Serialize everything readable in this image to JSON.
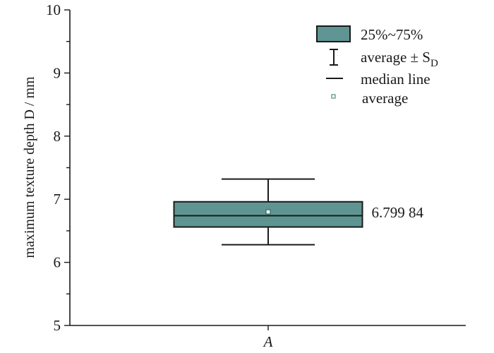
{
  "chart_data": {
    "type": "box",
    "ylabel": "maximum texture depth D / mm",
    "ylim": [
      5,
      10
    ],
    "yticks": [
      "5",
      "6",
      "7",
      "8",
      "9",
      "10"
    ],
    "categories": [
      "A"
    ],
    "boxes": [
      {
        "category": "A",
        "q1": 6.56,
        "median": 6.74,
        "q3": 6.96,
        "mean": 6.79984,
        "sd_low": 6.28,
        "sd_high": 7.32,
        "mean_label": "6.799 84"
      }
    ],
    "legend": {
      "position": "top-right",
      "items": [
        {
          "symbol": "box",
          "label": "25%~75%"
        },
        {
          "symbol": "whisker",
          "label": "average ± S",
          "subscript": "D"
        },
        {
          "symbol": "line",
          "label": "median line"
        },
        {
          "symbol": "square",
          "label": "average"
        }
      ]
    },
    "colors": {
      "box_fill": "#5e9592",
      "axis": "#1a1a1a"
    },
    "grid": false
  }
}
